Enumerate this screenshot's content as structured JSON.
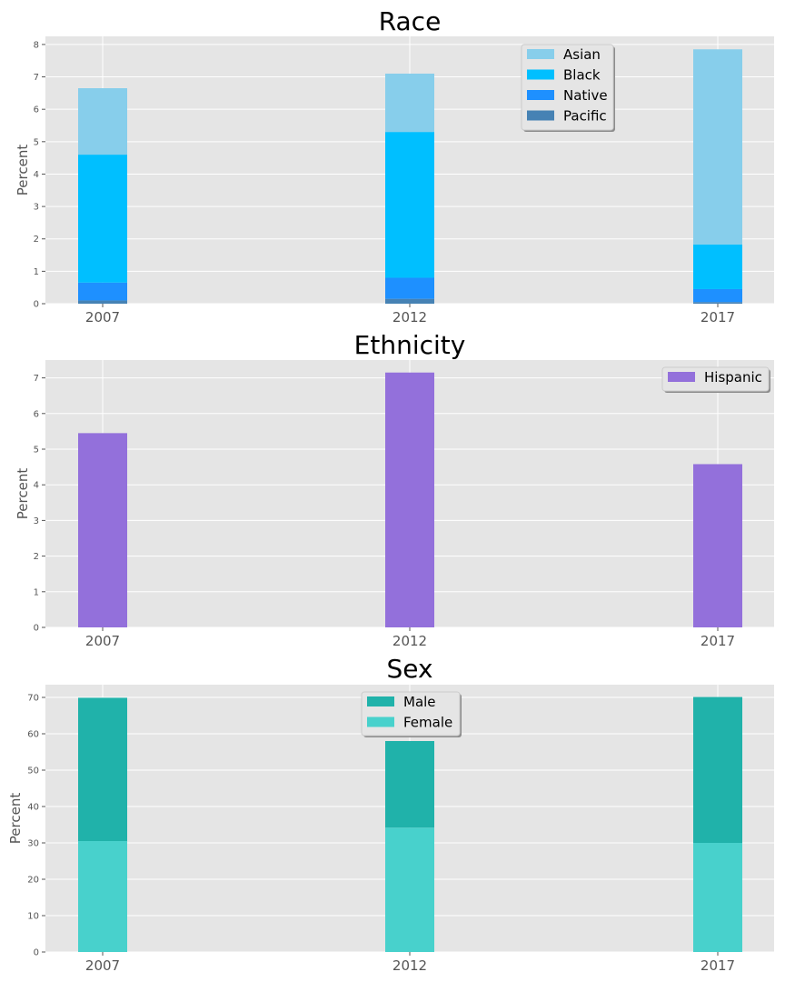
{
  "chart_data": [
    {
      "type": "bar",
      "stacked": true,
      "title": "Race",
      "ylabel": "Percent",
      "xlabel": "",
      "categories": [
        "2007",
        "2012",
        "2017"
      ],
      "ylim": [
        0,
        8.25
      ],
      "yticks": [
        0,
        1,
        2,
        3,
        4,
        5,
        6,
        7,
        8
      ],
      "grid": true,
      "legend_position": "top-center",
      "series": [
        {
          "name": "Pacific",
          "color": "#4682b4",
          "values": [
            0.1,
            0.15,
            0.05
          ]
        },
        {
          "name": "Native",
          "color": "#1e90ff",
          "values": [
            0.55,
            0.65,
            0.4
          ]
        },
        {
          "name": "Black",
          "color": "#00bfff",
          "values": [
            3.95,
            4.5,
            1.38
          ]
        },
        {
          "name": "Asian",
          "color": "#87ceeb",
          "values": [
            2.05,
            1.8,
            6.02
          ]
        }
      ],
      "legend_order": [
        "Asian",
        "Black",
        "Native",
        "Pacific"
      ]
    },
    {
      "type": "bar",
      "stacked": true,
      "title": "Ethnicity",
      "ylabel": "Percent",
      "xlabel": "",
      "categories": [
        "2007",
        "2012",
        "2017"
      ],
      "ylim": [
        0,
        7.5
      ],
      "yticks": [
        0,
        1,
        2,
        3,
        4,
        5,
        6,
        7
      ],
      "grid": true,
      "legend_position": "top-right",
      "series": [
        {
          "name": "Hispanic",
          "color": "#9370db",
          "values": [
            5.45,
            7.15,
            4.58
          ]
        }
      ],
      "legend_order": [
        "Hispanic"
      ]
    },
    {
      "type": "bar",
      "stacked": true,
      "title": "Sex",
      "ylabel": "Percent",
      "xlabel": "",
      "categories": [
        "2007",
        "2012",
        "2017"
      ],
      "ylim": [
        0,
        73.5
      ],
      "yticks": [
        0,
        10,
        20,
        30,
        40,
        50,
        60,
        70
      ],
      "grid": true,
      "legend_position": "top-center",
      "series": [
        {
          "name": "Female",
          "color": "#48d1cc",
          "values": [
            30.5,
            34.2,
            30
          ]
        },
        {
          "name": "Male",
          "color": "#20b2aa",
          "values": [
            39.4,
            23.8,
            40.1
          ]
        }
      ],
      "legend_order": [
        "Male",
        "Female"
      ]
    }
  ]
}
